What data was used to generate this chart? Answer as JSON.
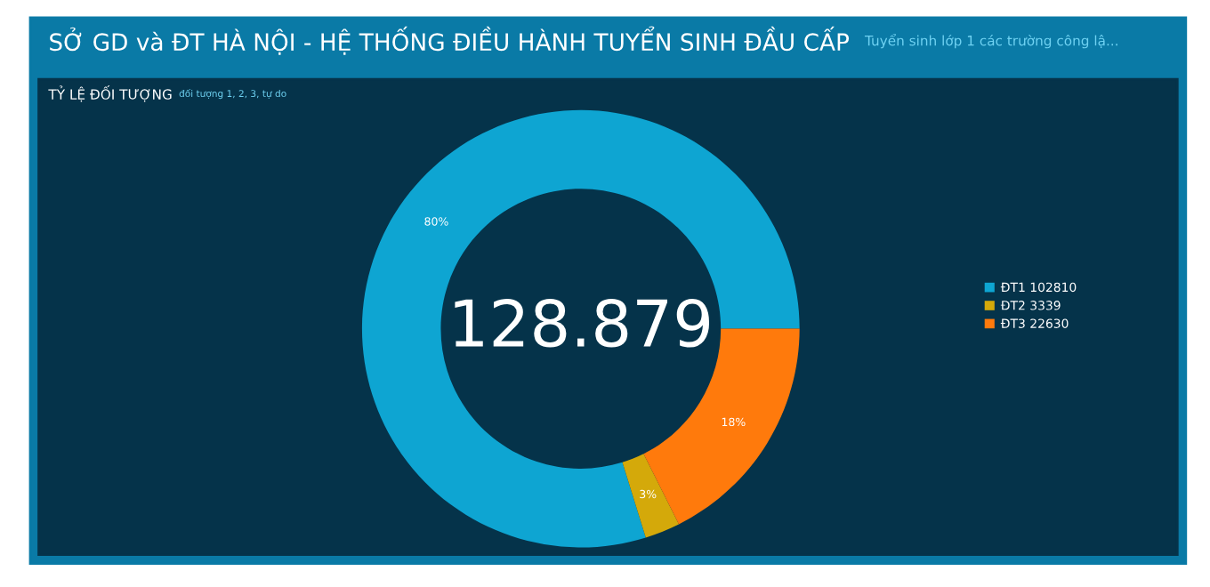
{
  "chart_data": {
    "type": "donut",
    "title": "SỞ GD và ĐT HÀ NỘI - HỆ THỐNG ĐIỀU HÀNH TUYỂN SINH ĐẦU CẤP",
    "subtitle": "Tuyển sinh lớp 1 các trường công lậ...",
    "annotations": [
      "TỶ LỆ ĐỐI TƯỢNG",
      "đối tượng 1, 2, 3, tự do",
      "128.879"
    ],
    "categories": [
      "ĐT1 102810",
      "ĐT2 3339",
      "ĐT3 22630"
    ],
    "values": [
      79.8,
      2.6,
      17.6
    ],
    "colors": [
      "#0ea5d2",
      "#d4a90a",
      "#ff7a0c"
    ],
    "value_labels": [
      "80%",
      "3%",
      "18%"
    ],
    "legend": "right"
  }
}
